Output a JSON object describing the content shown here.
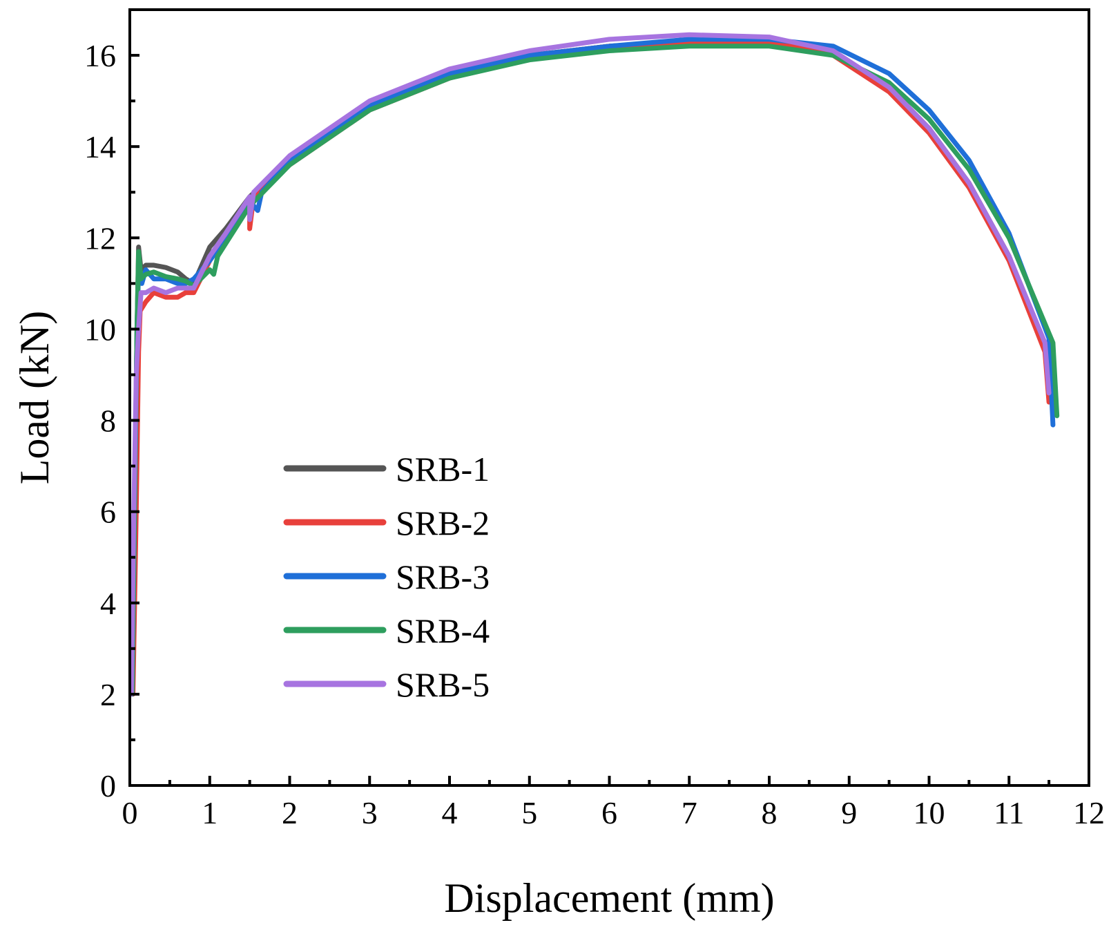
{
  "chart_data": {
    "type": "line",
    "title": "",
    "xlabel": "Displacement (mm)",
    "ylabel": "Load (kN)",
    "xlim": [
      0,
      12
    ],
    "ylim": [
      0,
      17
    ],
    "xticks": [
      0,
      1,
      2,
      3,
      4,
      5,
      6,
      7,
      8,
      9,
      10,
      11,
      12
    ],
    "yticks": [
      0,
      2,
      4,
      6,
      8,
      10,
      12,
      14,
      16
    ],
    "grid": false,
    "legend_position": "lower-left",
    "series": [
      {
        "name": "SRB-1",
        "color": "#555555",
        "points": [
          [
            0.03,
            2.0
          ],
          [
            0.06,
            6.0
          ],
          [
            0.09,
            10.0
          ],
          [
            0.11,
            11.8
          ],
          [
            0.14,
            11.3
          ],
          [
            0.2,
            11.4
          ],
          [
            0.3,
            11.4
          ],
          [
            0.45,
            11.35
          ],
          [
            0.6,
            11.25
          ],
          [
            0.7,
            11.1
          ],
          [
            0.8,
            11.0
          ],
          [
            1.0,
            11.8
          ],
          [
            1.2,
            12.2
          ],
          [
            1.5,
            12.9
          ],
          [
            2.0,
            13.7
          ],
          [
            3.0,
            14.9
          ],
          [
            4.0,
            15.6
          ],
          [
            5.0,
            16.0
          ],
          [
            6.0,
            16.2
          ],
          [
            7.0,
            16.3
          ],
          [
            8.0,
            16.25
          ],
          [
            8.8,
            16.0
          ],
          [
            9.5,
            15.3
          ],
          [
            10.0,
            14.4
          ],
          [
            10.5,
            13.2
          ],
          [
            11.0,
            11.6
          ],
          [
            11.45,
            9.6
          ],
          [
            11.5,
            8.6
          ]
        ]
      },
      {
        "name": "SRB-2",
        "color": "#e8403b",
        "points": [
          [
            0.04,
            2.0
          ],
          [
            0.08,
            6.0
          ],
          [
            0.11,
            9.5
          ],
          [
            0.13,
            10.4
          ],
          [
            0.2,
            10.6
          ],
          [
            0.3,
            10.8
          ],
          [
            0.45,
            10.7
          ],
          [
            0.6,
            10.7
          ],
          [
            0.7,
            10.8
          ],
          [
            0.8,
            10.8
          ],
          [
            1.0,
            11.5
          ],
          [
            1.2,
            12.0
          ],
          [
            1.5,
            12.7
          ],
          [
            1.5,
            12.2
          ],
          [
            1.55,
            12.9
          ],
          [
            2.0,
            13.6
          ],
          [
            3.0,
            14.8
          ],
          [
            4.0,
            15.5
          ],
          [
            5.0,
            16.0
          ],
          [
            6.0,
            16.2
          ],
          [
            7.0,
            16.3
          ],
          [
            8.0,
            16.3
          ],
          [
            8.8,
            16.0
          ],
          [
            9.5,
            15.2
          ],
          [
            10.0,
            14.3
          ],
          [
            10.5,
            13.1
          ],
          [
            11.0,
            11.5
          ],
          [
            11.45,
            9.5
          ],
          [
            11.5,
            8.4
          ]
        ]
      },
      {
        "name": "SRB-3",
        "color": "#1f6fd8",
        "points": [
          [
            0.03,
            2.0
          ],
          [
            0.06,
            6.0
          ],
          [
            0.09,
            10.0
          ],
          [
            0.11,
            11.3
          ],
          [
            0.15,
            11.0
          ],
          [
            0.2,
            11.3
          ],
          [
            0.3,
            11.1
          ],
          [
            0.45,
            11.1
          ],
          [
            0.6,
            11.0
          ],
          [
            0.7,
            11.0
          ],
          [
            0.8,
            11.1
          ],
          [
            1.0,
            11.5
          ],
          [
            1.2,
            12.0
          ],
          [
            1.5,
            12.8
          ],
          [
            1.6,
            12.6
          ],
          [
            1.65,
            13.0
          ],
          [
            2.0,
            13.7
          ],
          [
            3.0,
            14.9
          ],
          [
            4.0,
            15.6
          ],
          [
            5.0,
            16.0
          ],
          [
            6.0,
            16.2
          ],
          [
            7.0,
            16.35
          ],
          [
            8.0,
            16.35
          ],
          [
            8.8,
            16.2
          ],
          [
            9.5,
            15.6
          ],
          [
            10.0,
            14.8
          ],
          [
            10.5,
            13.7
          ],
          [
            11.0,
            12.1
          ],
          [
            11.5,
            9.8
          ],
          [
            11.55,
            7.9
          ]
        ]
      },
      {
        "name": "SRB-4",
        "color": "#2e9e5e",
        "points": [
          [
            0.03,
            2.0
          ],
          [
            0.06,
            6.0
          ],
          [
            0.09,
            10.0
          ],
          [
            0.11,
            11.7
          ],
          [
            0.14,
            11.1
          ],
          [
            0.2,
            11.2
          ],
          [
            0.3,
            11.25
          ],
          [
            0.45,
            11.15
          ],
          [
            0.6,
            11.1
          ],
          [
            0.7,
            11.05
          ],
          [
            0.8,
            10.95
          ],
          [
            1.0,
            11.3
          ],
          [
            1.05,
            11.2
          ],
          [
            1.1,
            11.6
          ],
          [
            1.5,
            12.7
          ],
          [
            2.0,
            13.6
          ],
          [
            3.0,
            14.8
          ],
          [
            4.0,
            15.5
          ],
          [
            5.0,
            15.9
          ],
          [
            6.0,
            16.1
          ],
          [
            7.0,
            16.2
          ],
          [
            8.0,
            16.2
          ],
          [
            8.8,
            16.0
          ],
          [
            9.5,
            15.4
          ],
          [
            10.0,
            14.6
          ],
          [
            10.5,
            13.5
          ],
          [
            11.0,
            12.0
          ],
          [
            11.55,
            9.7
          ],
          [
            11.6,
            8.1
          ]
        ]
      },
      {
        "name": "SRB-5",
        "color": "#a774e0",
        "points": [
          [
            0.02,
            2.0
          ],
          [
            0.05,
            6.0
          ],
          [
            0.08,
            9.0
          ],
          [
            0.11,
            10.0
          ],
          [
            0.14,
            10.8
          ],
          [
            0.2,
            10.8
          ],
          [
            0.3,
            10.9
          ],
          [
            0.45,
            10.8
          ],
          [
            0.6,
            10.9
          ],
          [
            0.7,
            10.9
          ],
          [
            0.8,
            10.9
          ],
          [
            1.0,
            11.6
          ],
          [
            1.2,
            12.1
          ],
          [
            1.5,
            12.9
          ],
          [
            1.5,
            12.4
          ],
          [
            1.55,
            13.0
          ],
          [
            2.0,
            13.8
          ],
          [
            3.0,
            15.0
          ],
          [
            4.0,
            15.7
          ],
          [
            5.0,
            16.1
          ],
          [
            6.0,
            16.35
          ],
          [
            7.0,
            16.45
          ],
          [
            8.0,
            16.4
          ],
          [
            8.8,
            16.1
          ],
          [
            9.5,
            15.3
          ],
          [
            10.0,
            14.4
          ],
          [
            10.5,
            13.2
          ],
          [
            11.0,
            11.6
          ],
          [
            11.45,
            9.7
          ],
          [
            11.5,
            8.6
          ]
        ]
      }
    ]
  }
}
